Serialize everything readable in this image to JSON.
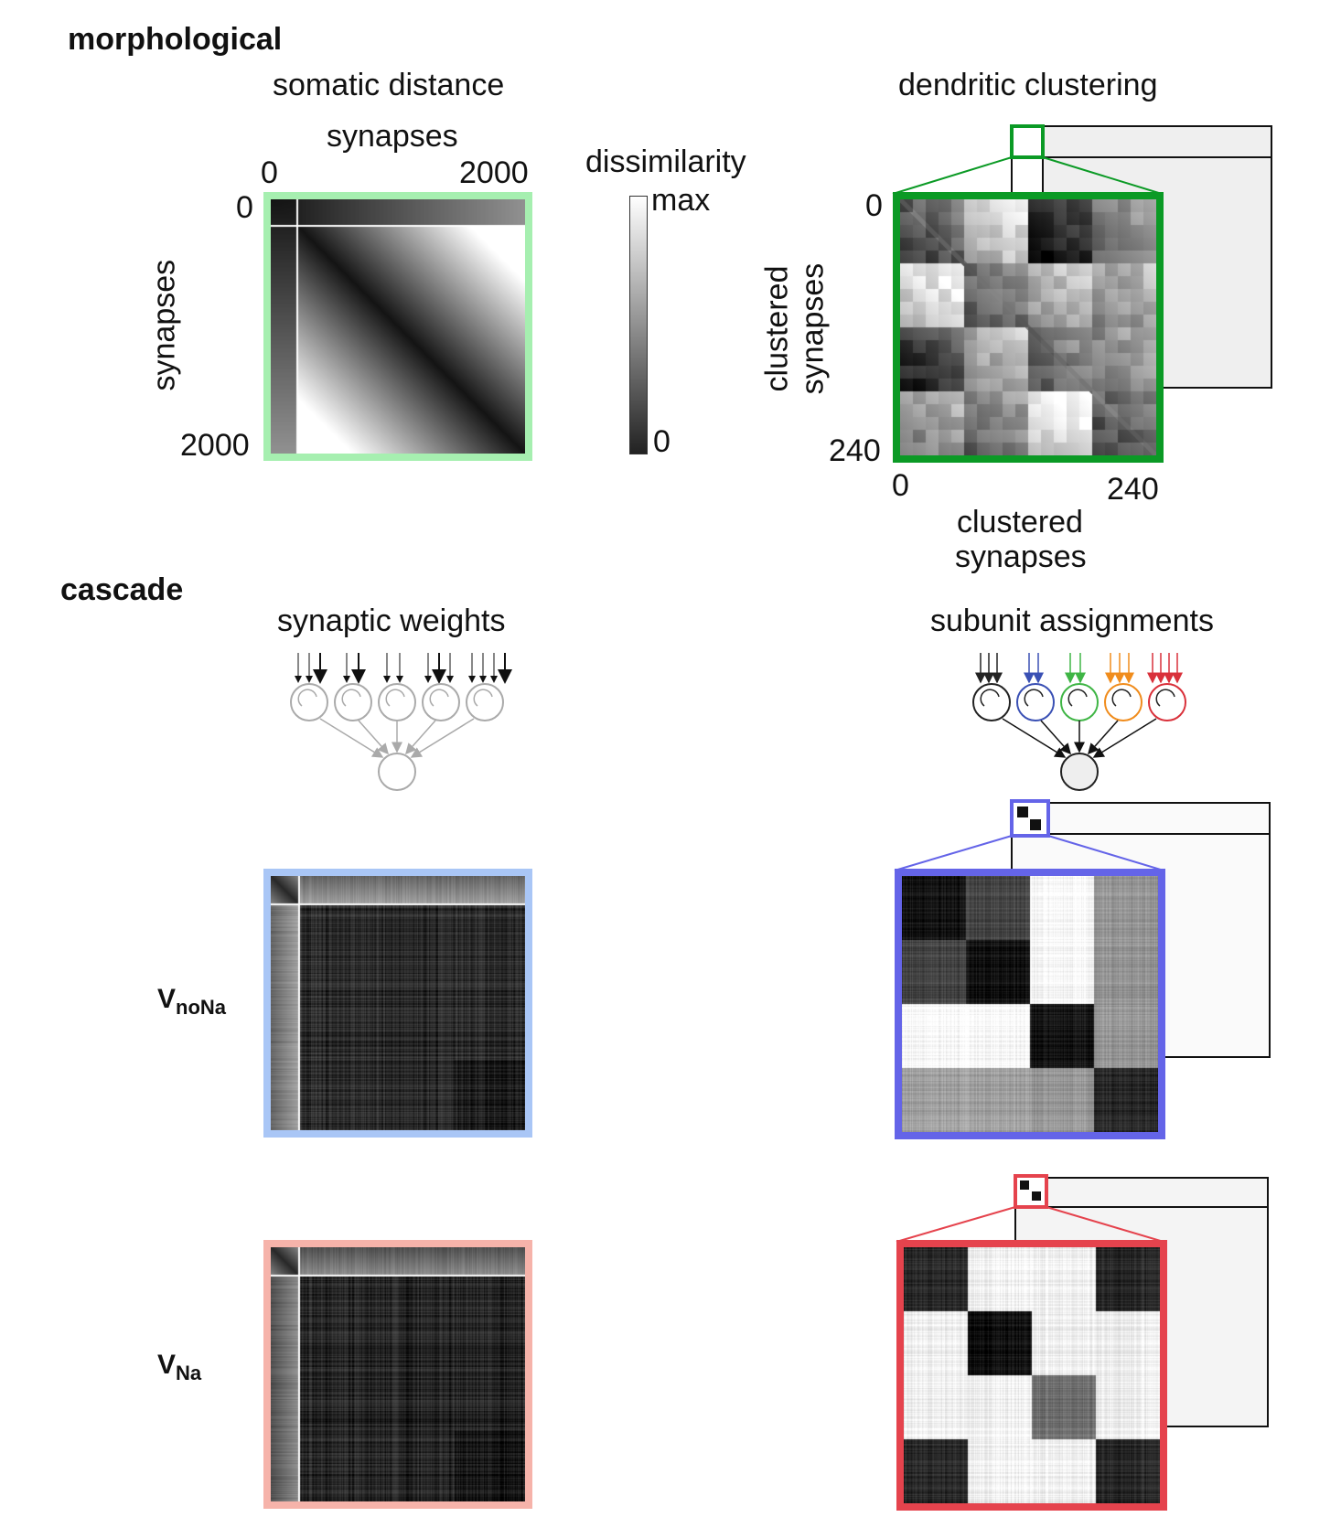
{
  "sections": {
    "morphological": "morphological",
    "cascade": "cascade"
  },
  "panels": {
    "somatic_distance": {
      "title": "somatic distance",
      "x_label": "synapses",
      "y_label": "synapses",
      "x_tick_start": "0",
      "x_tick_end": "2000",
      "y_tick_start": "0",
      "y_tick_end": "2000",
      "border_color": "#a6efb0"
    },
    "colorbar": {
      "title": "dissimilarity",
      "max_label": "max",
      "min_label": "0"
    },
    "dendritic_clustering": {
      "title": "dendritic clustering",
      "x_label_line1": "clustered",
      "x_label_line2": "synapses",
      "y_label_line1": "clustered",
      "y_label_line2": "synapses",
      "x_tick_start": "0",
      "x_tick_end": "240",
      "y_tick_start": "0",
      "y_tick_end": "240",
      "border_color": "#0b9a25"
    },
    "synaptic_weights": {
      "title": "synaptic weights"
    },
    "subunit_assignments": {
      "title": "subunit assignments",
      "subunit_colors": [
        "#222222",
        "#3a50b4",
        "#3fb545",
        "#f08c1c",
        "#d9303a"
      ]
    }
  },
  "rows": {
    "vnona": {
      "label_main": "V",
      "label_sub": "noNa",
      "border_color": "#a9c6f6",
      "inset_color": "#6464e8"
    },
    "vna": {
      "label_main": "V",
      "label_sub": "Na",
      "border_color": "#f6b3aa",
      "inset_color": "#e5434d"
    }
  }
}
